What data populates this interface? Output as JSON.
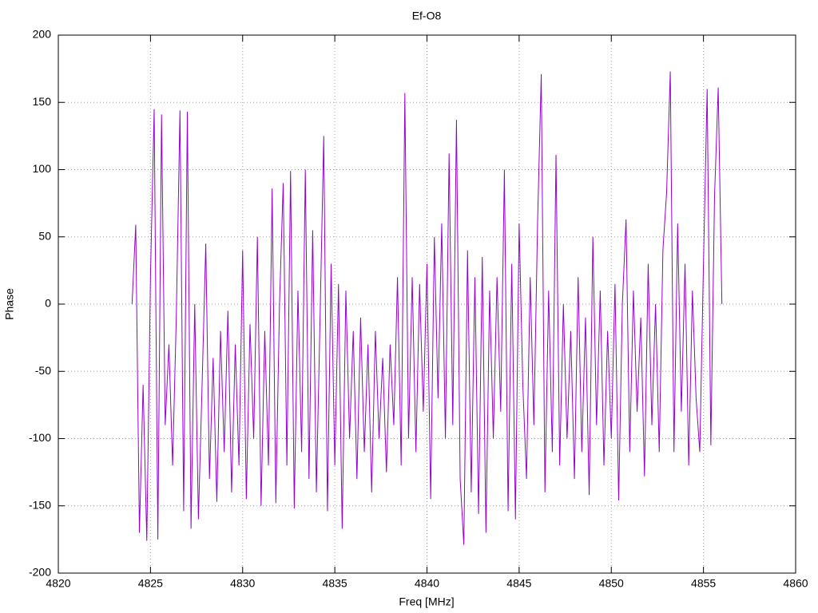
{
  "chart_data": {
    "type": "line",
    "title": "Ef-O8",
    "x_label": "Freq [MHz]",
    "y_label": "Phase",
    "x": [
      4824.0,
      4824.2,
      4824.4,
      4824.6,
      4824.8,
      4825.0,
      4825.2,
      4825.4,
      4825.6,
      4825.8,
      4826.0,
      4826.2,
      4826.4,
      4826.6,
      4826.8,
      4827.0,
      4827.2,
      4827.4,
      4827.6,
      4827.8,
      4828.0,
      4828.2,
      4828.4,
      4828.6,
      4828.8,
      4829.0,
      4829.2,
      4829.4,
      4829.6,
      4829.8,
      4830.0,
      4830.2,
      4830.4,
      4830.6,
      4830.8,
      4831.0,
      4831.2,
      4831.4,
      4831.6,
      4831.8,
      4832.0,
      4832.2,
      4832.4,
      4832.6,
      4832.8,
      4833.0,
      4833.2,
      4833.4,
      4833.6,
      4833.8,
      4834.0,
      4834.2,
      4834.4,
      4834.6,
      4834.8,
      4835.0,
      4835.2,
      4835.4,
      4835.6,
      4835.8,
      4836.0,
      4836.2,
      4836.4,
      4836.6,
      4836.8,
      4837.0,
      4837.2,
      4837.4,
      4837.6,
      4837.8,
      4838.0,
      4838.2,
      4838.4,
      4838.6,
      4838.8,
      4839.0,
      4839.2,
      4839.4,
      4839.6,
      4839.8,
      4840.0,
      4840.2,
      4840.4,
      4840.6,
      4840.8,
      4841.0,
      4841.2,
      4841.4,
      4841.6,
      4841.8,
      4842.0,
      4842.2,
      4842.4,
      4842.6,
      4842.8,
      4843.0,
      4843.2,
      4843.4,
      4843.6,
      4843.8,
      4844.0,
      4844.2,
      4844.4,
      4844.6,
      4844.8,
      4845.0,
      4845.2,
      4845.4,
      4845.6,
      4845.8,
      4846.0,
      4846.2,
      4846.4,
      4846.6,
      4846.8,
      4847.0,
      4847.2,
      4847.4,
      4847.6,
      4847.8,
      4848.0,
      4848.2,
      4848.4,
      4848.6,
      4848.8,
      4849.0,
      4849.2,
      4849.4,
      4849.6,
      4849.8,
      4850.0,
      4850.2,
      4850.4,
      4850.6,
      4850.8,
      4851.0,
      4851.2,
      4851.4,
      4851.6,
      4851.8,
      4852.0,
      4852.2,
      4852.4,
      4852.6,
      4852.8,
      4853.0,
      4853.2,
      4853.4,
      4853.6,
      4853.8,
      4854.0,
      4854.2,
      4854.4,
      4854.6,
      4854.8,
      4855.0,
      4855.2,
      4855.4,
      4855.6,
      4855.8,
      4856.0
    ],
    "series": [
      {
        "color": "#9400d3",
        "values": [
          0,
          59,
          -170,
          -60,
          -176,
          21,
          145,
          -175,
          141,
          -90,
          -30,
          -120,
          -10,
          144,
          -154,
          143,
          -167,
          0,
          -160,
          -60,
          45,
          -130,
          -40,
          -147,
          -20,
          -110,
          -5,
          -140,
          -30,
          -120,
          40,
          -145,
          -15,
          -100,
          50,
          -150,
          -20,
          -120,
          86,
          -148,
          0,
          90,
          -120,
          99,
          -152,
          10,
          -110,
          100,
          -130,
          55,
          -140,
          -10,
          125,
          -154,
          30,
          -120,
          15,
          -167,
          10,
          -100,
          -20,
          -130,
          -10,
          -110,
          -30,
          -140,
          -20,
          -100,
          -40,
          -125,
          -30,
          -90,
          20,
          -120,
          157,
          -100,
          20,
          -110,
          15,
          -80,
          30,
          -145,
          50,
          -70,
          60,
          -100,
          112,
          -90,
          137,
          -130,
          -179,
          40,
          -140,
          20,
          -156,
          35,
          -170,
          10,
          -100,
          20,
          -80,
          100,
          -154,
          30,
          -160,
          60,
          -60,
          -130,
          20,
          -90,
          60,
          171,
          -140,
          10,
          -110,
          111,
          -120,
          0,
          -100,
          -20,
          -130,
          20,
          -110,
          -10,
          -142,
          50,
          -90,
          10,
          -120,
          -20,
          -100,
          15,
          -146,
          0,
          63,
          -110,
          10,
          -80,
          -10,
          -128,
          30,
          -90,
          0,
          -110,
          40,
          83,
          173,
          -110,
          60,
          -80,
          30,
          -120,
          10,
          -70,
          -110,
          30,
          160,
          -105,
          80,
          161,
          0
        ]
      }
    ],
    "xlim": [
      4820,
      4860
    ],
    "xticks": [
      4820,
      4825,
      4830,
      4835,
      4840,
      4845,
      4850,
      4855,
      4860
    ],
    "ylim": [
      -200,
      200
    ],
    "yticks": [
      -200,
      -150,
      -100,
      -50,
      0,
      50,
      100,
      150,
      200
    ],
    "grid": true
  }
}
